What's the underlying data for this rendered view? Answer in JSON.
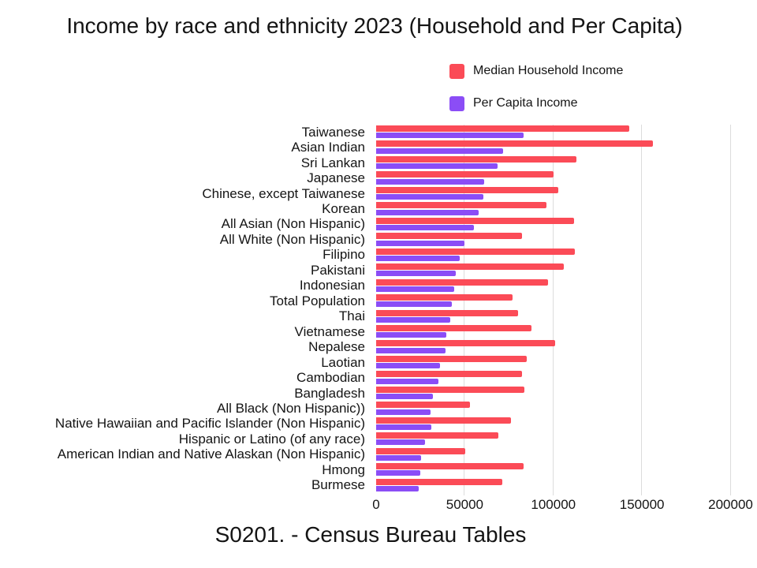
{
  "title": "Income by race and ethnicity 2023 (Household and Per Capita)",
  "caption": "S0201. - Census Bureau Tables",
  "legend": [
    {
      "label": "Median Household Income",
      "color": "#fb4b57"
    },
    {
      "label": "Per Capita Income",
      "color": "#8b4df6"
    }
  ],
  "colors": {
    "household_bar": "#fb4b57",
    "per_capita_bar": "#8b4df6",
    "gridline": "#dcdcdc",
    "text": "#141414",
    "background": "#ffffff"
  },
  "chart_data": {
    "type": "bar",
    "orientation": "horizontal",
    "title": "Income by race and ethnicity 2023 (Household and Per Capita)",
    "xlabel": "",
    "ylabel": "",
    "xlim": [
      0,
      200000
    ],
    "xticks": [
      0,
      50000,
      100000,
      150000,
      200000
    ],
    "xtick_labels": [
      "0",
      "50000",
      "100000",
      "150000",
      "200000"
    ],
    "grid": true,
    "legend_position": "top-right",
    "categories": [
      "Taiwanese",
      "Asian Indian",
      "Sri Lankan",
      "Japanese",
      "Chinese, except Taiwanese",
      "Korean",
      "All Asian (Non Hispanic)",
      "All White (Non Hispanic)",
      "Filipino",
      "Pakistani",
      "Indonesian",
      "Total Population",
      "Thai",
      "Vietnamese",
      "Nepalese",
      "Laotian",
      "Cambodian",
      "Bangladesh",
      "All Black (Non Hispanic))",
      "Native Hawaiian and Pacific Islander (Non Hispanic)",
      "Hispanic or Latino (of any race)",
      "American Indian and Native Alaskan (Non Hispanic)",
      "Hmong",
      "Burmese"
    ],
    "series": [
      {
        "name": "Median Household Income",
        "color": "#fb4b57",
        "values": [
          143000,
          156000,
          113000,
          100000,
          103000,
          96000,
          111500,
          82500,
          112000,
          106000,
          97000,
          77000,
          80000,
          87500,
          101000,
          85000,
          82500,
          83500,
          53000,
          76000,
          69000,
          50500,
          83000,
          71000
        ]
      },
      {
        "name": "Per Capita Income",
        "color": "#8b4df6",
        "values": [
          83000,
          71500,
          68500,
          61000,
          60500,
          58000,
          55000,
          50000,
          47000,
          45000,
          44000,
          42500,
          42000,
          39500,
          39000,
          36000,
          35000,
          32000,
          30500,
          31000,
          27500,
          25500,
          25000,
          24000
        ]
      }
    ]
  }
}
